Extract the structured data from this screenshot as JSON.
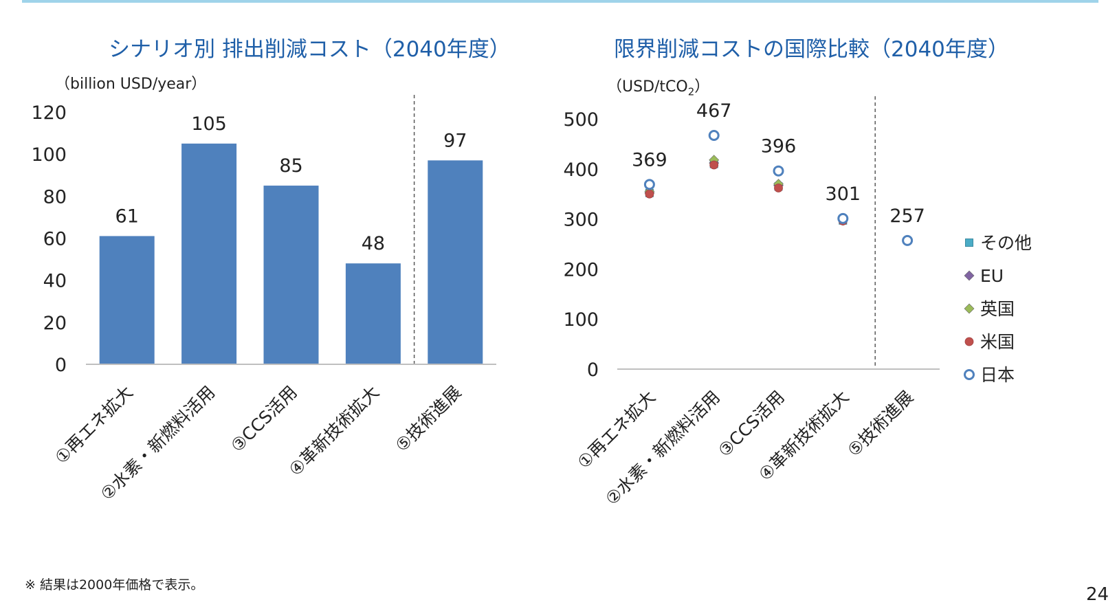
{
  "colors": {
    "accent_rule": "#9fd3ea",
    "title": "#1f5fa8",
    "bar": "#4f81bd",
    "axis": "#bfbfbf",
    "divider": "#595959"
  },
  "left_chart": {
    "title": "シナリオ別 排出削減コスト（2040年度）",
    "unit": "（billion USD/year）"
  },
  "right_chart": {
    "title": "限界削減コストの国際比較（2040年度）",
    "unit_prefix": "（USD/tCO",
    "unit_sub": "2",
    "unit_suffix": "）"
  },
  "footnote": "※ 結果は2000年価格で表示。",
  "page_number": "24",
  "chart_data": [
    {
      "type": "bar",
      "title": "シナリオ別 排出削減コスト（2040年度）",
      "ylabel": "（billion USD/year）",
      "categories": [
        "①再エネ拡大",
        "②水素・新燃料活用",
        "③CCS活用",
        "④革新技術拡大",
        "⑤技術進展"
      ],
      "values": [
        61,
        105,
        85,
        48,
        97
      ],
      "ylim": [
        0,
        120
      ],
      "yticks": [
        0,
        20,
        40,
        60,
        80,
        100,
        120
      ],
      "divider_after_index": 3,
      "grid": false,
      "color": "#4f81bd"
    },
    {
      "type": "scatter",
      "title": "限界削減コストの国際比較（2040年度）",
      "ylabel": "（USD/tCO2）",
      "categories": [
        "①再エネ拡大",
        "②水素・新燃料活用",
        "③CCS活用",
        "④革新技術拡大",
        "⑤技術進展"
      ],
      "ylim": [
        0,
        500
      ],
      "yticks": [
        0,
        100,
        200,
        300,
        400,
        500
      ],
      "divider_after_index": 3,
      "grid": false,
      "legend_position": "right",
      "data_labels": [
        369,
        467,
        396,
        301,
        257
      ],
      "series": [
        {
          "name": "その他",
          "marker": "square",
          "color": "#4bacc6",
          "values": [
            352,
            410,
            365,
            297,
            null
          ]
        },
        {
          "name": "EU",
          "marker": "diamond",
          "color": "#8064a2",
          "values": [
            352,
            412,
            367,
            297,
            null
          ]
        },
        {
          "name": "英国",
          "marker": "diamond",
          "color": "#9bbb59",
          "values": [
            355,
            418,
            370,
            298,
            null
          ]
        },
        {
          "name": "米国",
          "marker": "circle",
          "color": "#c0504d",
          "values": [
            350,
            408,
            362,
            296,
            null
          ]
        },
        {
          "name": "日本",
          "marker": "open-circle",
          "color": "#4f81bd",
          "values": [
            369,
            467,
            396,
            301,
            257
          ]
        }
      ]
    }
  ]
}
